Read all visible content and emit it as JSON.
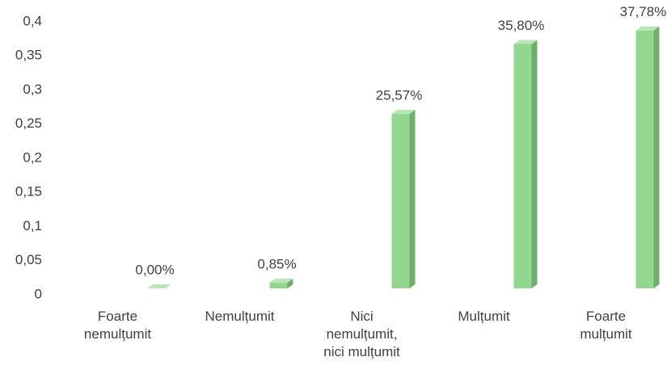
{
  "chart_data": {
    "type": "bar3d",
    "categories": [
      "Foarte nemulțumit",
      "Nemulțumit",
      "Nici nemulțumit, nici mulțumit",
      "Mulțumit",
      "Foarte mulțumit"
    ],
    "values": [
      0,
      0.0085,
      0.2557,
      0.358,
      0.3778
    ],
    "value_labels": [
      "0,00%",
      "0,85%",
      "25,57%",
      "35,80%",
      "37,78%"
    ],
    "color": "#92d68f",
    "ylim": [
      0,
      0.4
    ],
    "yticks": [
      0,
      {
        "value": 0.05,
        "label": "0,05"
      },
      {
        "value": 0.1,
        "label": "0,1"
      },
      {
        "value": 0.15,
        "label": "0,15"
      },
      {
        "value": 0.2,
        "label": "0,2"
      },
      {
        "value": 0.25,
        "label": "0,25"
      },
      {
        "value": 0.3,
        "label": "0,3"
      },
      {
        "value": 0.35,
        "label": "0,35"
      },
      {
        "value": 0.4,
        "label": "0,4"
      }
    ],
    "grid": false
  }
}
